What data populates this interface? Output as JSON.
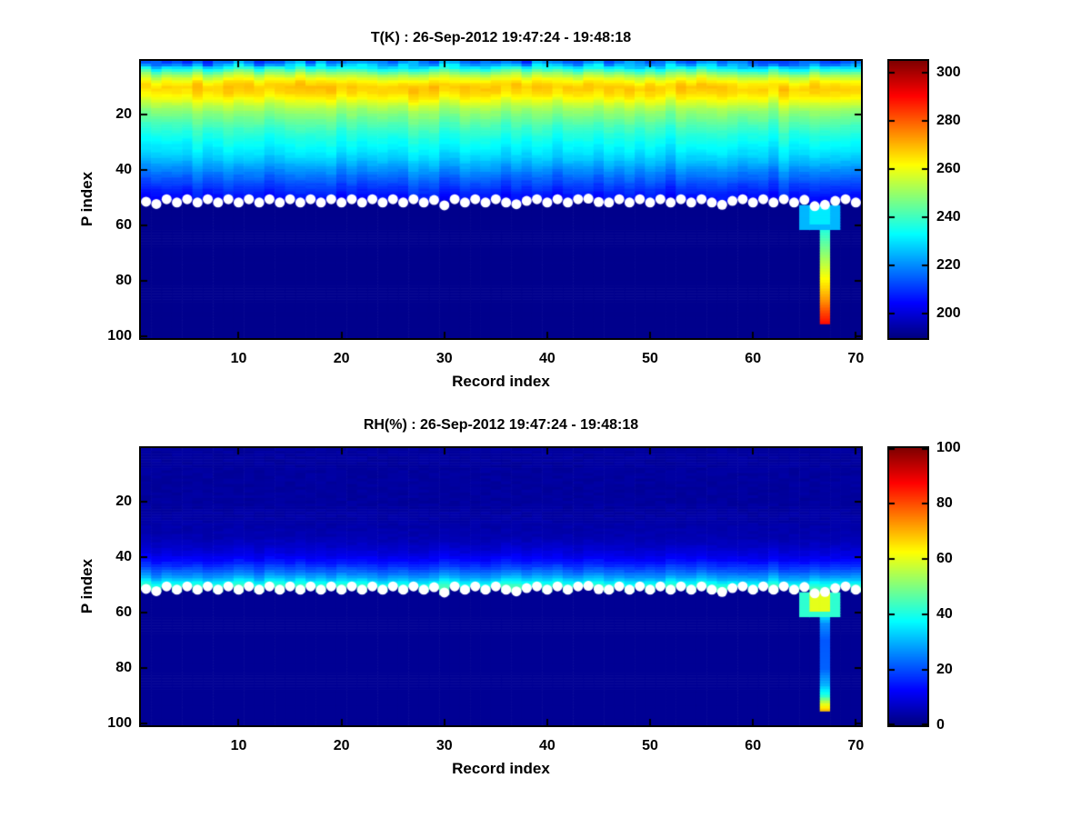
{
  "figure_background": "#ffffff",
  "text_color": "#000000",
  "surface_line": {
    "marker": "white-filled-circle",
    "marker_color": "#ffffff",
    "p_values": [
      51.3,
      52.1,
      50.4,
      51.6,
      50.4,
      51.6,
      50.4,
      51.6,
      50.4,
      51.6,
      50.4,
      51.6,
      50.4,
      51.6,
      50.4,
      51.6,
      50.4,
      51.6,
      50.4,
      51.6,
      50.4,
      51.6,
      50.4,
      51.6,
      50.4,
      51.6,
      50.4,
      51.6,
      50.7,
      52.6,
      50.4,
      51.6,
      50.4,
      51.6,
      50.4,
      51.6,
      52.2,
      51.0,
      50.4,
      51.6,
      50.4,
      51.6,
      50.4,
      50.2,
      51.4,
      51.6,
      50.4,
      51.6,
      50.4,
      51.6,
      50.4,
      51.6,
      50.4,
      51.6,
      50.4,
      51.6,
      52.4,
      51.0,
      50.4,
      51.6,
      50.4,
      51.6,
      50.4,
      51.6,
      50.6,
      52.9,
      52.4,
      51.0,
      50.4,
      51.6
    ]
  },
  "chart_data": [
    {
      "type": "heatmap",
      "panel": "temperature",
      "title": "T(K) : 26-Sep-2012 19:47:24 - 19:48:18",
      "xlabel": "Record index",
      "ylabel": "P index",
      "n_records": 70,
      "n_levels": 100,
      "x_range": [
        0.5,
        70.5
      ],
      "x_ticks": [
        10,
        20,
        30,
        40,
        50,
        60,
        70
      ],
      "y_range": [
        0.5,
        100.5
      ],
      "y_ticks": [
        20,
        40,
        60,
        80,
        100
      ],
      "y_axis_direction": "reversed",
      "grid": false,
      "colormap": "jet",
      "color_scale": [
        190,
        305
      ],
      "colorbar_ticks": [
        200,
        220,
        240,
        260,
        280,
        300
      ],
      "background_value": 191.5,
      "vertical_profile": {
        "p": [
          1,
          2,
          3,
          4,
          5,
          6,
          7,
          8,
          9,
          10,
          12,
          14,
          16,
          18,
          21,
          24,
          27,
          30,
          33,
          36,
          39,
          42,
          45,
          48,
          51,
          53
        ],
        "value": [
          216,
          224,
          232,
          240,
          248,
          254,
          259,
          263,
          266,
          268,
          266,
          262,
          256,
          251,
          246,
          241,
          237,
          234,
          231,
          227,
          222,
          217,
          212,
          208,
          204,
          201
        ]
      },
      "anomaly": {
        "block": {
          "records": [
            64.9,
            68.1
          ],
          "p": [
            52.8,
            61.5
          ],
          "value": 231,
          "edge_value": 225
        },
        "column": {
          "records": [
            66.6,
            67.4
          ],
          "p": [
            61.5,
            68,
            75,
            82,
            88,
            92,
            95.6
          ],
          "value": [
            237,
            246,
            256,
            266,
            276,
            284,
            290
          ]
        }
      }
    },
    {
      "type": "heatmap",
      "panel": "relative-humidity",
      "title": "RH(%) : 26-Sep-2012 19:47:24 - 19:48:18",
      "xlabel": "Record index",
      "ylabel": "P index",
      "n_records": 70,
      "n_levels": 100,
      "x_range": [
        0.5,
        70.5
      ],
      "x_ticks": [
        10,
        20,
        30,
        40,
        50,
        60,
        70
      ],
      "y_range": [
        0.5,
        100.5
      ],
      "y_ticks": [
        20,
        40,
        60,
        80,
        100
      ],
      "y_axis_direction": "reversed",
      "grid": false,
      "colormap": "jet",
      "color_scale": [
        0,
        100
      ],
      "colorbar_ticks": [
        0,
        20,
        40,
        60,
        80,
        100
      ],
      "background_value": 2,
      "vertical_profile": {
        "p": [
          1,
          20,
          28,
          33,
          36,
          39,
          41,
          43,
          45,
          47,
          48,
          49,
          50,
          51,
          53
        ],
        "value": [
          3,
          3,
          4,
          5,
          7,
          10,
          13,
          17,
          22,
          28,
          32,
          37,
          41,
          44,
          46
        ]
      },
      "anomaly": {
        "block": {
          "records": [
            64.9,
            68.1
          ],
          "p": [
            52.8,
            61.5
          ],
          "value": 60,
          "edge_value": 42
        },
        "column": {
          "records": [
            66.6,
            67.4
          ],
          "p": [
            61.5,
            64,
            70,
            80,
            86,
            90,
            92.5,
            95
          ],
          "value": [
            34,
            26,
            21,
            22,
            30,
            42,
            58,
            68
          ]
        }
      }
    }
  ]
}
